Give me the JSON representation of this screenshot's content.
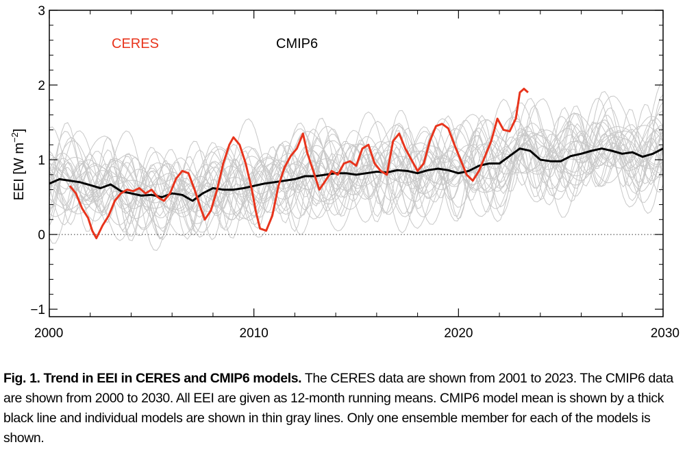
{
  "chart_data": {
    "type": "line",
    "title": "",
    "xlabel": "",
    "ylabel": "EEI [W m⁻²]",
    "ylabel_parts": {
      "main": "EEI [W m",
      "sup": "−2",
      "close": "]"
    },
    "xlim": [
      2000,
      2030
    ],
    "ylim": [
      -1.1,
      3
    ],
    "xticks": [
      2000,
      2010,
      2020,
      2030
    ],
    "xtick_labels": [
      "2000",
      "2010",
      "2020",
      "2030"
    ],
    "yticks": [
      -1,
      0,
      1,
      2,
      3
    ],
    "ytick_labels": [
      "−1",
      "0",
      "1",
      "2",
      "3"
    ],
    "zero_line": true,
    "legend": [
      {
        "label": "CERES",
        "color": "#e8341c"
      },
      {
        "label": "CMIP6",
        "color": "#000000"
      }
    ],
    "series": [
      {
        "name": "CERES",
        "color": "#e8341c",
        "x": [
          2001.0,
          2001.3,
          2001.6,
          2001.9,
          2002.1,
          2002.3,
          2002.6,
          2002.9,
          2003.2,
          2003.5,
          2003.8,
          2004.1,
          2004.4,
          2004.7,
          2005.0,
          2005.3,
          2005.6,
          2005.9,
          2006.2,
          2006.5,
          2006.8,
          2007.1,
          2007.4,
          2007.6,
          2007.9,
          2008.2,
          2008.5,
          2008.8,
          2009.0,
          2009.3,
          2009.6,
          2009.9,
          2010.1,
          2010.3,
          2010.6,
          2010.9,
          2011.2,
          2011.5,
          2011.8,
          2012.1,
          2012.4,
          2012.6,
          2012.9,
          2013.2,
          2013.5,
          2013.8,
          2014.1,
          2014.4,
          2014.7,
          2015.0,
          2015.3,
          2015.6,
          2015.9,
          2016.2,
          2016.5,
          2016.8,
          2017.1,
          2017.4,
          2017.7,
          2018.0,
          2018.3,
          2018.6,
          2018.9,
          2019.2,
          2019.5,
          2019.8,
          2020.1,
          2020.4,
          2020.7,
          2021.0,
          2021.3,
          2021.6,
          2021.9,
          2022.2,
          2022.5,
          2022.8,
          2023.0,
          2023.2,
          2023.4
        ],
        "y": [
          0.65,
          0.55,
          0.35,
          0.22,
          0.05,
          -0.05,
          0.12,
          0.25,
          0.45,
          0.55,
          0.6,
          0.58,
          0.62,
          0.55,
          0.6,
          0.5,
          0.45,
          0.55,
          0.75,
          0.85,
          0.82,
          0.6,
          0.35,
          0.2,
          0.32,
          0.6,
          0.95,
          1.2,
          1.3,
          1.2,
          0.95,
          0.6,
          0.3,
          0.08,
          0.05,
          0.25,
          0.65,
          0.9,
          1.05,
          1.15,
          1.35,
          1.1,
          0.85,
          0.6,
          0.72,
          0.85,
          0.8,
          0.95,
          0.98,
          0.92,
          1.15,
          1.2,
          0.95,
          0.85,
          0.8,
          1.25,
          1.35,
          1.15,
          1.0,
          0.85,
          0.95,
          1.25,
          1.45,
          1.48,
          1.42,
          1.2,
          1.0,
          0.8,
          0.72,
          0.85,
          1.05,
          1.25,
          1.55,
          1.4,
          1.38,
          1.55,
          1.9,
          1.95,
          1.9
        ]
      },
      {
        "name": "CMIP6 mean",
        "color": "#000000",
        "x": [
          2000.0,
          2000.5,
          2001.0,
          2001.5,
          2002.0,
          2002.5,
          2003.0,
          2003.5,
          2004.0,
          2004.5,
          2005.0,
          2005.5,
          2006.0,
          2006.5,
          2007.0,
          2007.5,
          2008.0,
          2008.5,
          2009.0,
          2009.5,
          2010.0,
          2010.5,
          2011.0,
          2011.5,
          2012.0,
          2012.5,
          2013.0,
          2013.5,
          2014.0,
          2014.5,
          2015.0,
          2015.5,
          2016.0,
          2016.5,
          2017.0,
          2017.5,
          2018.0,
          2018.5,
          2019.0,
          2019.5,
          2020.0,
          2020.5,
          2021.0,
          2021.5,
          2022.0,
          2022.5,
          2023.0,
          2023.5,
          2024.0,
          2024.5,
          2025.0,
          2025.5,
          2026.0,
          2026.5,
          2027.0,
          2027.5,
          2028.0,
          2028.5,
          2029.0,
          2029.5,
          2030.0
        ],
        "y": [
          0.68,
          0.74,
          0.72,
          0.7,
          0.66,
          0.62,
          0.67,
          0.58,
          0.55,
          0.52,
          0.53,
          0.5,
          0.55,
          0.53,
          0.45,
          0.55,
          0.62,
          0.6,
          0.6,
          0.62,
          0.65,
          0.68,
          0.7,
          0.72,
          0.74,
          0.78,
          0.78,
          0.8,
          0.82,
          0.82,
          0.8,
          0.82,
          0.84,
          0.83,
          0.86,
          0.85,
          0.82,
          0.86,
          0.88,
          0.86,
          0.82,
          0.85,
          0.92,
          0.95,
          0.95,
          1.05,
          1.15,
          1.12,
          1.0,
          0.98,
          0.98,
          1.05,
          1.08,
          1.12,
          1.15,
          1.12,
          1.08,
          1.1,
          1.04,
          1.08,
          1.15
        ]
      }
    ],
    "background_series_count": 30,
    "background_series_color": "#c8c8c8"
  },
  "caption": {
    "bold": "Fig. 1. Trend in EEI in CERES and CMIP6 models.",
    "text": " The CERES data are shown from 2001 to 2023. The CMIP6 data are shown from 2000 to 2030. All EEI are given as 12-month running means. CMIP6 model mean is shown by a thick black line and individual models are shown in thin gray lines. Only one ensemble member for each of the models is shown."
  }
}
